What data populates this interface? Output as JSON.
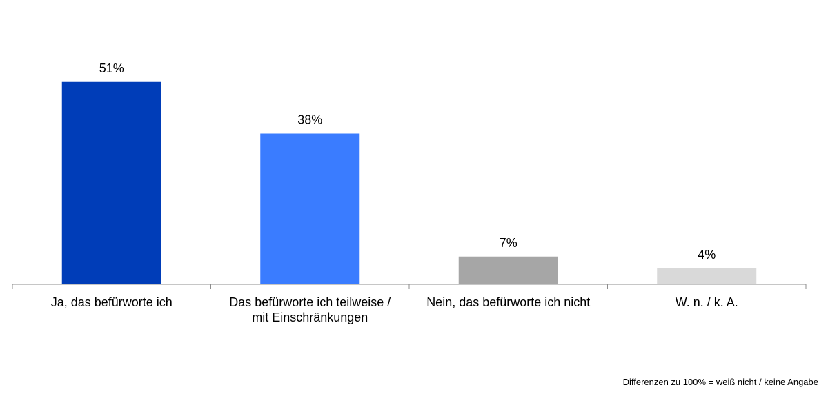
{
  "chart_data": {
    "type": "bar",
    "categories": [
      [
        "Ja, das befürworte ich"
      ],
      [
        "Das befürworte ich teilweise /",
        "mit Einschränkungen"
      ],
      [
        "Nein, das befürworte ich nicht"
      ],
      [
        "W. n. / k. A."
      ]
    ],
    "values": [
      51,
      38,
      7,
      4
    ],
    "value_labels": [
      "51%",
      "38%",
      "7%",
      "4%"
    ],
    "colors": [
      "#003DB8",
      "#3A7CFF",
      "#A6A6A6",
      "#D9D9D9"
    ],
    "title": "",
    "xlabel": "",
    "ylabel": "",
    "ylim": [
      0,
      56
    ],
    "grid": false,
    "legend": "none"
  },
  "footnote": "Differenzen zu 100% = weiß nicht / keine Angabe"
}
